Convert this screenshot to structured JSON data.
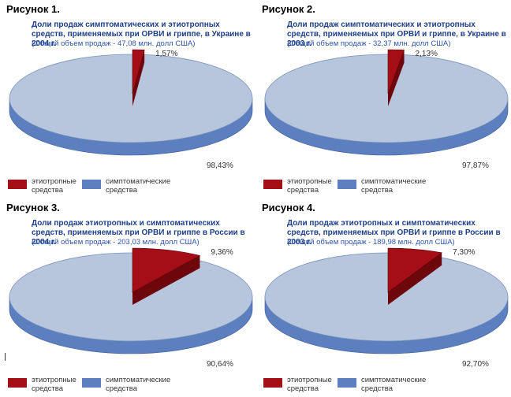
{
  "legend": {
    "etio_label": "этиотропные средства",
    "symp_label": "симптоматические средства"
  },
  "colors": {
    "etio": "#a50e16",
    "etio_dark": "#6d070c",
    "symp_top": "#b7c6dc",
    "symp_side": "#5c7fbf",
    "title": "#1d3f86",
    "subtitle": "#2e55a8"
  },
  "chart_data": [
    {
      "type": "pie",
      "figure": "Рисунок 1.",
      "title": "Доли продаж симптоматических и этиотропных средств, применяемых при ОРВИ и гриппе, в Украине в 2004 г.",
      "subtitle": "(Общий объем продаж - 47,08 млн. долл США)",
      "series": [
        {
          "name": "этиотропные средства",
          "value": 1.57,
          "label": "1,57%"
        },
        {
          "name": "симптоматические средства",
          "value": 98.43,
          "label": "98,43%"
        }
      ]
    },
    {
      "type": "pie",
      "figure": "Рисунок 2.",
      "title": "Доли продаж симптоматических и этиотропных средств, применяемых при ОРВИ и гриппе, в Украине в 2003 г.",
      "subtitle": "(Общий объем продаж - 32,37 млн. долл США)",
      "series": [
        {
          "name": "этиотропные средства",
          "value": 2.13,
          "label": "2,13%"
        },
        {
          "name": "симптоматические средства",
          "value": 97.87,
          "label": "97,87%"
        }
      ]
    },
    {
      "type": "pie",
      "figure": "Рисунок 3.",
      "title": "Доли продаж этиотропных и симптоматических средств, применяемых при ОРВИ и гриппе в России в 2004 г.",
      "subtitle": "(Общий объем продаж - 203,03 млн. долл США)",
      "series": [
        {
          "name": "этиотропные средства",
          "value": 9.36,
          "label": "9,36%"
        },
        {
          "name": "симптоматические средства",
          "value": 90.64,
          "label": "90,64%"
        }
      ]
    },
    {
      "type": "pie",
      "figure": "Рисунок 4.",
      "title": "Доли продаж этиотропных и симптоматических средств, применяемых при ОРВИ и гриппе в России в 2003 г.",
      "subtitle": "(Общий объем продаж - 189,98 млн. долл США)",
      "series": [
        {
          "name": "этиотропные средства",
          "value": 7.3,
          "label": "7,30%"
        },
        {
          "name": "симптоматические средства",
          "value": 92.7,
          "label": "92,70%"
        }
      ]
    }
  ]
}
